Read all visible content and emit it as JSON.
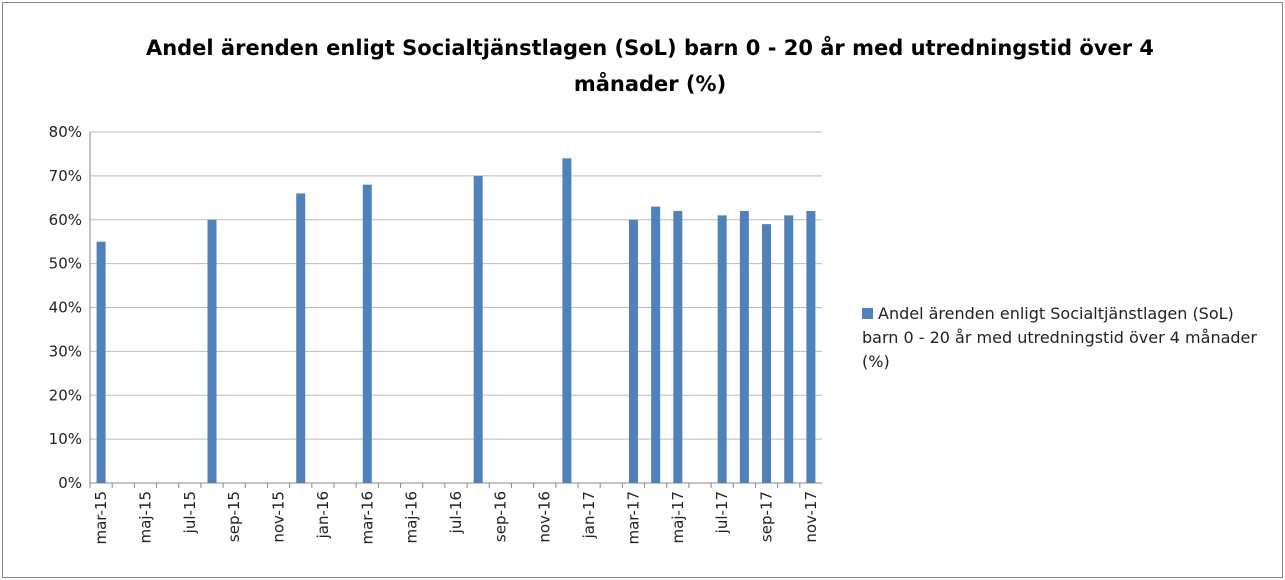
{
  "chart_data": {
    "type": "bar",
    "title": "Andel ärenden enligt Socialtjänstlagen (SoL) barn 0 - 20 år med utredningstid över 4 månader (%)",
    "categories": [
      "mar-15",
      null,
      "maj-15",
      null,
      "jul-15",
      null,
      "sep-15",
      null,
      "nov-15",
      null,
      "jan-16",
      null,
      "mar-16",
      null,
      "maj-16",
      null,
      "jul-16",
      null,
      "sep-16",
      null,
      "nov-16",
      null,
      "jan-17",
      null,
      "mar-17",
      null,
      "maj-17",
      null,
      "jul-17",
      null,
      "sep-17",
      null,
      "nov-17"
    ],
    "series": [
      {
        "name": "Andel ärenden enligt Socialtjänstlagen (SoL) barn 0 - 20 år med utredningstid över 4 månader (%)",
        "color": "#4f81bd",
        "values": [
          55,
          null,
          null,
          null,
          null,
          60,
          null,
          null,
          null,
          66,
          null,
          null,
          68,
          null,
          null,
          null,
          null,
          70,
          null,
          null,
          null,
          74,
          null,
          null,
          60,
          63,
          62,
          null,
          61,
          62,
          59,
          61,
          62
        ]
      }
    ],
    "ylim": [
      0,
      80
    ],
    "yticks": [
      {
        "value": 0,
        "label": "0%"
      },
      {
        "value": 10,
        "label": "10%"
      },
      {
        "value": 20,
        "label": "20%"
      },
      {
        "value": 30,
        "label": "30%"
      },
      {
        "value": 40,
        "label": "40%"
      },
      {
        "value": 50,
        "label": "50%"
      },
      {
        "value": 60,
        "label": "60%"
      },
      {
        "value": 70,
        "label": "70%"
      },
      {
        "value": 80,
        "label": "80%"
      }
    ],
    "grid": true,
    "legend": "right"
  }
}
